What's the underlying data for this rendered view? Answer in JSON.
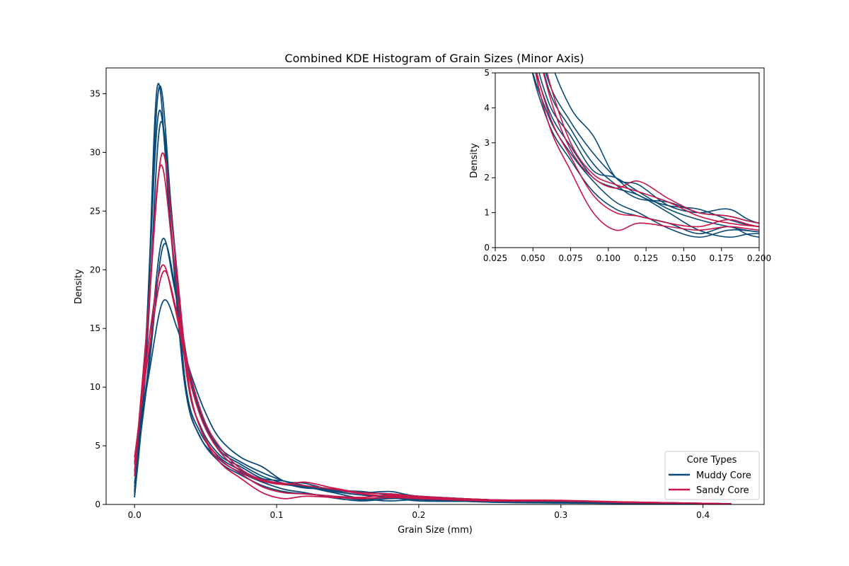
{
  "chart_data": [
    {
      "type": "line",
      "title": "Combined KDE Histogram of Grain Sizes (Minor Axis)",
      "xlabel": "Grain Size (mm)",
      "ylabel": "Density",
      "xlim": [
        -0.02,
        0.443
      ],
      "ylim": [
        0,
        37.2
      ],
      "xticks": [
        "0.0",
        "0.1",
        "0.2",
        "0.3",
        "0.4"
      ],
      "yticks": [
        "0",
        "5",
        "10",
        "15",
        "20",
        "25",
        "30",
        "35"
      ],
      "grid": false,
      "legend": {
        "title": "Core Types",
        "placement": "lower-right"
      },
      "colors": {
        "Muddy Core": "#0b4a78",
        "Sandy Core": "#c8174a"
      },
      "series": [
        {
          "name": "Muddy Core",
          "group": "Muddy Core",
          "peak": 35.6,
          "peak_x": 0.016,
          "x": [
            0.0,
            0.008,
            0.016,
            0.025,
            0.035,
            0.045,
            0.06,
            0.075,
            0.09,
            0.105,
            0.12,
            0.14,
            0.16,
            0.18,
            0.2,
            0.25,
            0.3,
            0.35,
            0.4,
            0.42
          ],
          "y": [
            0.6,
            12.0,
            35.6,
            24.0,
            10.5,
            6.0,
            3.8,
            2.7,
            1.9,
            1.3,
            1.0,
            0.55,
            0.3,
            0.5,
            0.45,
            0.2,
            0.12,
            0.08,
            0.05,
            0.03
          ]
        },
        {
          "name": "Muddy Core",
          "group": "Muddy Core",
          "peak": 35.4,
          "peak_x": 0.017,
          "x": [
            0.0,
            0.008,
            0.017,
            0.026,
            0.036,
            0.046,
            0.06,
            0.075,
            0.09,
            0.105,
            0.12,
            0.14,
            0.16,
            0.18,
            0.2,
            0.25,
            0.3,
            0.35,
            0.4,
            0.42
          ],
          "y": [
            0.8,
            14.0,
            35.4,
            25.0,
            10.0,
            5.8,
            3.6,
            2.5,
            1.6,
            1.1,
            0.9,
            0.7,
            0.4,
            0.6,
            0.3,
            0.25,
            0.15,
            0.1,
            0.05,
            0.03
          ]
        },
        {
          "name": "Muddy Core",
          "group": "Muddy Core",
          "peak": 33.4,
          "peak_x": 0.017,
          "x": [
            0.0,
            0.008,
            0.017,
            0.026,
            0.036,
            0.046,
            0.06,
            0.075,
            0.09,
            0.105,
            0.12,
            0.14,
            0.16,
            0.18,
            0.2,
            0.25,
            0.3,
            0.35,
            0.4,
            0.42
          ],
          "y": [
            1.0,
            13.5,
            33.4,
            23.0,
            10.2,
            6.2,
            4.0,
            2.9,
            2.0,
            1.7,
            1.5,
            1.0,
            0.5,
            0.3,
            0.4,
            0.2,
            0.15,
            0.08,
            0.04,
            0.02
          ]
        },
        {
          "name": "Muddy Core",
          "group": "Muddy Core",
          "peak": 32.4,
          "peak_x": 0.018,
          "x": [
            0.0,
            0.009,
            0.018,
            0.027,
            0.037,
            0.047,
            0.06,
            0.075,
            0.09,
            0.105,
            0.12,
            0.14,
            0.16,
            0.18,
            0.2,
            0.25,
            0.3,
            0.35,
            0.4,
            0.42
          ],
          "y": [
            1.2,
            14.0,
            32.4,
            23.5,
            10.8,
            6.5,
            4.2,
            3.2,
            2.2,
            2.0,
            1.6,
            1.1,
            0.8,
            0.6,
            0.45,
            0.3,
            0.2,
            0.1,
            0.05,
            0.03
          ]
        },
        {
          "name": "Muddy Core",
          "group": "Muddy Core",
          "peak": 22.4,
          "peak_x": 0.019,
          "x": [
            0.0,
            0.009,
            0.019,
            0.028,
            0.038,
            0.048,
            0.06,
            0.075,
            0.09,
            0.105,
            0.12,
            0.14,
            0.16,
            0.18,
            0.2,
            0.25,
            0.3,
            0.35,
            0.4,
            0.42
          ],
          "y": [
            1.5,
            11.0,
            22.4,
            18.5,
            11.5,
            7.2,
            4.6,
            3.4,
            2.4,
            1.8,
            1.4,
            1.3,
            1.0,
            0.9,
            0.7,
            0.4,
            0.25,
            0.12,
            0.06,
            0.03
          ]
        },
        {
          "name": "Muddy Core",
          "group": "Muddy Core",
          "peak": 22.0,
          "peak_x": 0.02,
          "x": [
            0.0,
            0.01,
            0.02,
            0.029,
            0.039,
            0.049,
            0.06,
            0.075,
            0.09,
            0.105,
            0.12,
            0.14,
            0.16,
            0.18,
            0.2,
            0.25,
            0.3,
            0.35,
            0.4,
            0.42
          ],
          "y": [
            1.8,
            11.5,
            22.0,
            18.2,
            11.0,
            7.0,
            4.8,
            3.6,
            2.7,
            2.0,
            1.5,
            1.2,
            1.1,
            0.8,
            0.6,
            0.35,
            0.22,
            0.12,
            0.06,
            0.03
          ]
        },
        {
          "name": "Muddy Core",
          "group": "Muddy Core",
          "peak": 17.3,
          "peak_x": 0.02,
          "x": [
            0.0,
            0.01,
            0.02,
            0.03,
            0.04,
            0.05,
            0.06,
            0.075,
            0.09,
            0.105,
            0.12,
            0.14,
            0.16,
            0.18,
            0.2,
            0.25,
            0.3,
            0.35,
            0.4,
            0.42
          ],
          "y": [
            3.4,
            11.0,
            17.3,
            15.0,
            11.0,
            7.8,
            5.6,
            4.0,
            3.2,
            2.0,
            1.8,
            1.2,
            1.0,
            1.1,
            0.7,
            0.4,
            0.2,
            0.1,
            0.05,
            0.03
          ]
        },
        {
          "name": "Sandy Core",
          "group": "Sandy Core",
          "peak": 29.8,
          "peak_x": 0.019,
          "x": [
            0.0,
            0.009,
            0.019,
            0.028,
            0.038,
            0.048,
            0.06,
            0.075,
            0.09,
            0.105,
            0.12,
            0.14,
            0.16,
            0.18,
            0.2,
            0.25,
            0.3,
            0.35,
            0.4,
            0.42
          ],
          "y": [
            2.4,
            15.0,
            29.8,
            22.0,
            10.5,
            6.0,
            3.6,
            2.2,
            1.0,
            0.5,
            0.7,
            0.6,
            0.5,
            0.6,
            0.5,
            0.3,
            0.3,
            0.15,
            0.1,
            0.05
          ]
        },
        {
          "name": "Sandy Core",
          "group": "Sandy Core",
          "peak": 28.8,
          "peak_x": 0.018,
          "x": [
            0.0,
            0.009,
            0.018,
            0.027,
            0.037,
            0.047,
            0.06,
            0.075,
            0.09,
            0.105,
            0.12,
            0.14,
            0.16,
            0.18,
            0.2,
            0.25,
            0.3,
            0.35,
            0.4,
            0.42
          ],
          "y": [
            2.8,
            15.5,
            28.8,
            21.5,
            10.8,
            6.3,
            3.9,
            2.6,
            1.5,
            1.0,
            0.9,
            0.7,
            0.6,
            0.8,
            0.6,
            0.35,
            0.3,
            0.2,
            0.1,
            0.05
          ]
        },
        {
          "name": "Sandy Core",
          "group": "Sandy Core",
          "peak": 20.3,
          "peak_x": 0.019,
          "x": [
            0.0,
            0.009,
            0.019,
            0.028,
            0.038,
            0.048,
            0.06,
            0.075,
            0.09,
            0.105,
            0.12,
            0.14,
            0.16,
            0.18,
            0.2,
            0.25,
            0.3,
            0.35,
            0.4,
            0.42
          ],
          "y": [
            3.6,
            13.0,
            20.3,
            17.0,
            11.0,
            7.0,
            4.5,
            2.8,
            2.0,
            1.7,
            1.9,
            1.4,
            1.0,
            0.9,
            0.7,
            0.4,
            0.35,
            0.2,
            0.1,
            0.05
          ]
        },
        {
          "name": "Sandy Core",
          "group": "Sandy Core",
          "peak": 19.8,
          "peak_x": 0.02,
          "x": [
            0.0,
            0.01,
            0.02,
            0.029,
            0.039,
            0.049,
            0.06,
            0.075,
            0.09,
            0.105,
            0.12,
            0.14,
            0.16,
            0.18,
            0.2,
            0.25,
            0.3,
            0.35,
            0.4,
            0.42
          ],
          "y": [
            4.0,
            13.0,
            19.8,
            16.8,
            11.2,
            7.2,
            4.9,
            3.0,
            2.1,
            1.8,
            1.6,
            1.3,
            0.9,
            0.7,
            0.6,
            0.4,
            0.3,
            0.2,
            0.1,
            0.05
          ]
        }
      ]
    },
    {
      "type": "line",
      "title": "",
      "xlabel": "",
      "ylabel": "Density",
      "xlim": [
        0.025,
        0.2
      ],
      "ylim": [
        0,
        5
      ],
      "xticks": [
        "0.025",
        "0.050",
        "0.075",
        "0.100",
        "0.125",
        "0.150",
        "0.175",
        "0.200"
      ],
      "yticks": [
        "0",
        "1",
        "2",
        "3",
        "4",
        "5"
      ],
      "grid": false,
      "note_series": "inset zoom of the same series"
    }
  ]
}
